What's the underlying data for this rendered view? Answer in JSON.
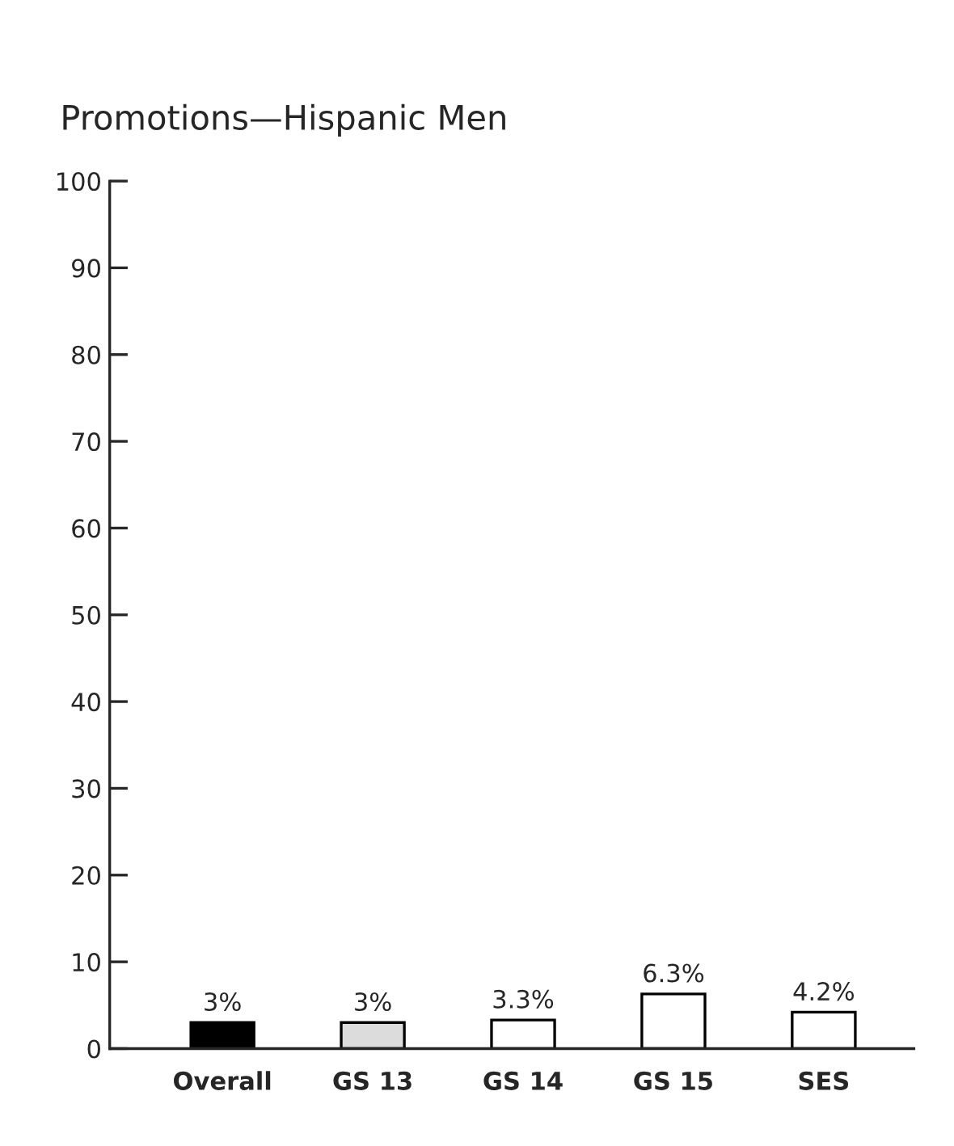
{
  "chart_data": {
    "type": "bar",
    "title": "Promotions—Hispanic Men",
    "categories": [
      "Overall",
      "GS 13",
      "GS 14",
      "GS 15",
      "SES"
    ],
    "values": [
      3,
      3,
      3.3,
      6.3,
      4.2
    ],
    "value_labels": [
      "3%",
      "3%",
      "3.3%",
      "6.3%",
      "4.2%"
    ],
    "colors": [
      "#000000",
      "#dcdcdc",
      "#ffffff",
      "#ffffff",
      "#ffffff"
    ],
    "ylim": [
      0,
      100
    ],
    "yticks": [
      0,
      10,
      20,
      30,
      40,
      50,
      60,
      70,
      80,
      90,
      100
    ],
    "grid": false
  }
}
